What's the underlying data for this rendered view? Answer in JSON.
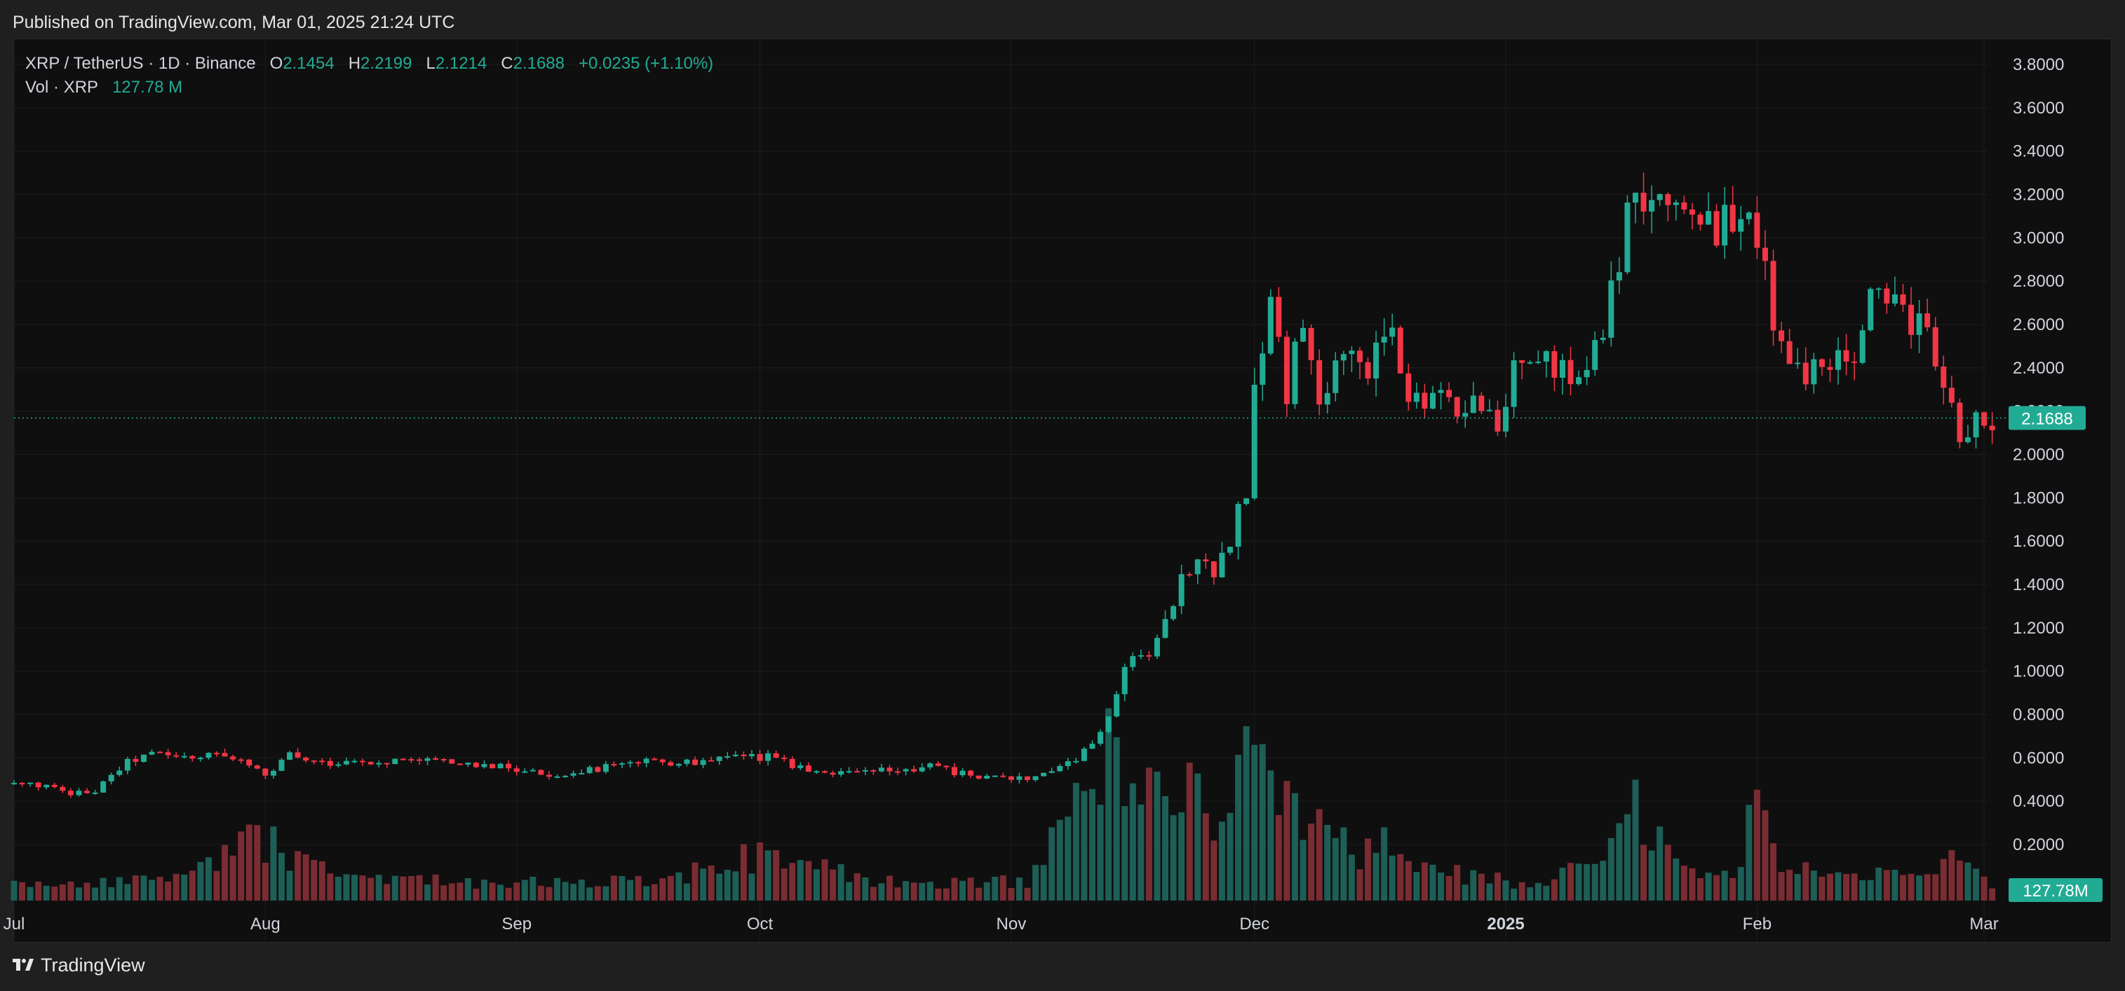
{
  "published": "Published on TradingView.com, Mar 01, 2025 21:24 UTC",
  "legend": {
    "symbol": "XRP / TetherUS · 1D · Binance",
    "open_label": "O",
    "open": "2.1454",
    "high_label": "H",
    "high": "2.2199",
    "low_label": "L",
    "low": "2.1214",
    "close_label": "C",
    "close": "2.1688",
    "change": "+0.0235 (+1.10%)",
    "vol_label": "Vol · XRP",
    "vol_value": "127.78 M"
  },
  "footer": {
    "brand": "TradingView"
  },
  "colors": {
    "up": "#22ab94",
    "down": "#f23645",
    "up_vol": "#1d5e56",
    "down_vol": "#7a2c33",
    "grid": "#1e1e1e",
    "axis_text": "#d1d4dc"
  },
  "chart_data": {
    "type": "candlestick",
    "symbol": "XRP / TetherUS",
    "interval": "1D",
    "exchange": "Binance",
    "y_ticks": [
      "3.8000",
      "3.6000",
      "3.4000",
      "3.2000",
      "3.0000",
      "2.8000",
      "2.6000",
      "2.4000",
      "2.2000",
      "2.0000",
      "1.8000",
      "1.6000",
      "1.4000",
      "1.2000",
      "1.0000",
      "0.8000",
      "0.6000",
      "0.4000",
      "0.2000"
    ],
    "ylim": [
      0,
      3.9
    ],
    "x_ticks": [
      {
        "label": "Jul",
        "day": 0
      },
      {
        "label": "Aug",
        "day": 31
      },
      {
        "label": "Sep",
        "day": 62
      },
      {
        "label": "Oct",
        "day": 92
      },
      {
        "label": "Nov",
        "day": 123
      },
      {
        "label": "Dec",
        "day": 153
      },
      {
        "label": "2025",
        "day": 184
      },
      {
        "label": "Feb",
        "day": 215
      },
      {
        "label": "Mar",
        "day": 243
      }
    ],
    "last_price": "2.1688",
    "last_price_value": 2.1688,
    "last_volume": "127.78M",
    "close_anchors": [
      [
        0,
        0.48
      ],
      [
        4,
        0.47
      ],
      [
        7,
        0.43
      ],
      [
        10,
        0.45
      ],
      [
        14,
        0.58
      ],
      [
        17,
        0.62
      ],
      [
        21,
        0.6
      ],
      [
        25,
        0.62
      ],
      [
        28,
        0.6
      ],
      [
        31,
        0.51
      ],
      [
        34,
        0.61
      ],
      [
        37,
        0.58
      ],
      [
        45,
        0.58
      ],
      [
        50,
        0.6
      ],
      [
        55,
        0.57
      ],
      [
        60,
        0.56
      ],
      [
        66,
        0.52
      ],
      [
        72,
        0.55
      ],
      [
        78,
        0.58
      ],
      [
        85,
        0.58
      ],
      [
        89,
        0.6
      ],
      [
        92,
        0.6
      ],
      [
        93,
        0.64
      ],
      [
        95,
        0.58
      ],
      [
        100,
        0.53
      ],
      [
        108,
        0.54
      ],
      [
        113,
        0.56
      ],
      [
        118,
        0.52
      ],
      [
        123,
        0.5
      ],
      [
        127,
        0.52
      ],
      [
        131,
        0.6
      ],
      [
        134,
        0.7
      ],
      [
        136,
        0.88
      ],
      [
        138,
        1.1
      ],
      [
        140,
        1.07
      ],
      [
        142,
        1.22
      ],
      [
        144,
        1.44
      ],
      [
        146,
        1.52
      ],
      [
        148,
        1.44
      ],
      [
        150,
        1.61
      ],
      [
        152,
        1.85
      ],
      [
        153,
        2.3
      ],
      [
        155,
        2.7
      ],
      [
        157,
        2.3
      ],
      [
        159,
        2.6
      ],
      [
        161,
        2.2
      ],
      [
        163,
        2.4
      ],
      [
        167,
        2.42
      ],
      [
        170,
        2.55
      ],
      [
        172,
        2.25
      ],
      [
        176,
        2.3
      ],
      [
        178,
        2.2
      ],
      [
        180,
        2.3
      ],
      [
        183,
        2.08
      ],
      [
        185,
        2.4
      ],
      [
        187,
        2.42
      ],
      [
        190,
        2.4
      ],
      [
        193,
        2.3
      ],
      [
        196,
        2.6
      ],
      [
        198,
        2.9
      ],
      [
        200,
        3.25
      ],
      [
        202,
        3.1
      ],
      [
        204,
        3.15
      ],
      [
        207,
        3.12
      ],
      [
        210,
        3.05
      ],
      [
        213,
        3.1
      ],
      [
        215,
        2.98
      ],
      [
        217,
        2.65
      ],
      [
        219,
        2.4
      ],
      [
        221,
        2.38
      ],
      [
        224,
        2.42
      ],
      [
        227,
        2.45
      ],
      [
        229,
        2.7
      ],
      [
        231,
        2.72
      ],
      [
        234,
        2.6
      ],
      [
        236,
        2.55
      ],
      [
        238,
        2.37
      ],
      [
        240,
        2.1
      ],
      [
        242,
        2.17
      ],
      [
        244,
        2.17
      ]
    ],
    "volume_anchors": [
      [
        0,
        0.07
      ],
      [
        20,
        0.08
      ],
      [
        30,
        0.25
      ],
      [
        40,
        0.08
      ],
      [
        80,
        0.07
      ],
      [
        92,
        0.19
      ],
      [
        110,
        0.06
      ],
      [
        125,
        0.08
      ],
      [
        132,
        0.4
      ],
      [
        136,
        0.65
      ],
      [
        140,
        0.4
      ],
      [
        144,
        0.43
      ],
      [
        148,
        0.35
      ],
      [
        150,
        0.28
      ],
      [
        153,
        0.8
      ],
      [
        156,
        0.4
      ],
      [
        160,
        0.3
      ],
      [
        165,
        0.2
      ],
      [
        168,
        0.22
      ],
      [
        172,
        0.2
      ],
      [
        176,
        0.12
      ],
      [
        180,
        0.1
      ],
      [
        185,
        0.08
      ],
      [
        190,
        0.1
      ],
      [
        195,
        0.12
      ],
      [
        200,
        0.35
      ],
      [
        204,
        0.2
      ],
      [
        208,
        0.12
      ],
      [
        212,
        0.1
      ],
      [
        215,
        0.45
      ],
      [
        218,
        0.18
      ],
      [
        222,
        0.09
      ],
      [
        230,
        0.1
      ],
      [
        236,
        0.1
      ],
      [
        238,
        0.18
      ],
      [
        241,
        0.12
      ],
      [
        244,
        0.05
      ]
    ]
  }
}
